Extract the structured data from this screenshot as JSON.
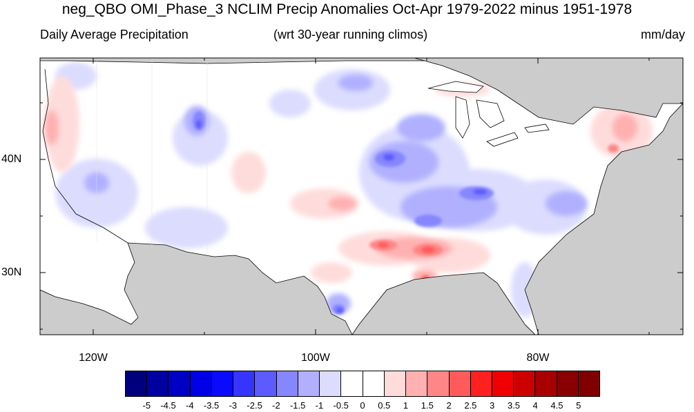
{
  "title": "neg_QBO OMI_Phase_3 NCLIM Precip Anomalies Oct-Apr 1979-2022 minus 1951-1978",
  "subtitle_left": "Daily Average Precipitation",
  "subtitle_center": "(wrt 30-year running climos)",
  "subtitle_right": "mm/day",
  "lat_labels": [
    "40N",
    "30N"
  ],
  "lon_labels": [
    "120W",
    "100W",
    "80W"
  ],
  "colorbar": {
    "labels": [
      "-5",
      "-4.5",
      "-4",
      "-3.5",
      "-3",
      "-2.5",
      "-2",
      "-1.5",
      "-1",
      "-0.5",
      "0",
      "0.5",
      "1",
      "1.5",
      "2",
      "2.5",
      "3",
      "3.5",
      "4",
      "4.5",
      "5"
    ],
    "colors": [
      "#00007f",
      "#0000a0",
      "#0000c4",
      "#0000e6",
      "#0a0aff",
      "#3535ff",
      "#5b5bff",
      "#8686ff",
      "#b0b0ff",
      "#dcdcff",
      "#ffffff",
      "#ffffff",
      "#ffdcdc",
      "#ffb0b0",
      "#ff8686",
      "#ff5b5b",
      "#ff2020",
      "#f00000",
      "#cc0000",
      "#a80000",
      "#8a0000",
      "#800000"
    ]
  },
  "colors": {
    "ocean_land_mask": "#cccccc",
    "wet_anomaly": "#5b5bff",
    "dry_anomaly": "#ff5b5b"
  }
}
